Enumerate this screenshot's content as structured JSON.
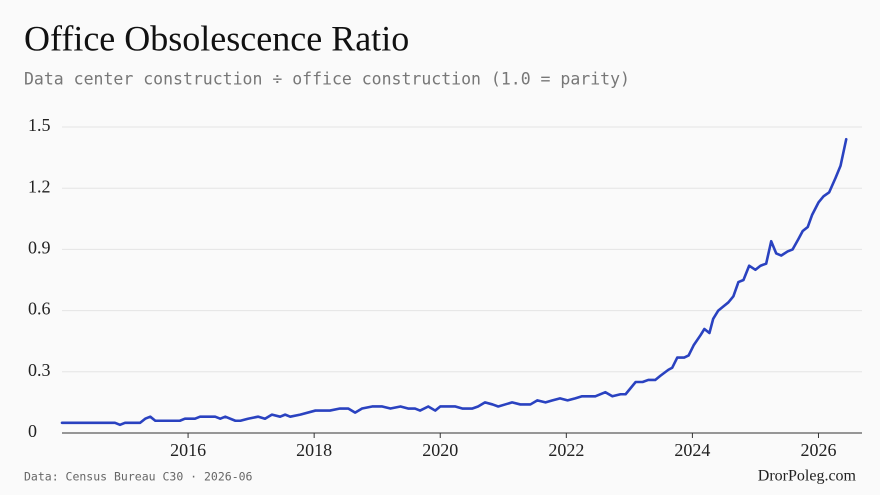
{
  "chart_data": {
    "type": "line",
    "title": "Office Obsolescence Ratio",
    "subtitle": "Data center construction ÷ office construction (1.0 = parity)",
    "source": "Data: Census Bureau C30 · 2026-06",
    "credit": "DrorPoleg.com",
    "xlim": [
      2014,
      2026.5
    ],
    "xticks": [
      2016,
      2018,
      2020,
      2022,
      2024,
      2026
    ],
    "ylim": [
      0,
      1.5
    ],
    "yticks": [
      0,
      0.3,
      0.6,
      0.9,
      1.2,
      1.5
    ],
    "grid": true,
    "x": [
      2014.0,
      2014.84,
      2014.92,
      2015.0,
      2015.24,
      2015.32,
      2015.4,
      2015.48,
      2015.87,
      2015.95,
      2016.11,
      2016.19,
      2016.43,
      2016.51,
      2016.59,
      2016.75,
      2016.83,
      2016.95,
      2017.11,
      2017.22,
      2017.33,
      2017.46,
      2017.54,
      2017.62,
      2017.78,
      2018.02,
      2018.25,
      2018.41,
      2018.54,
      2018.65,
      2018.76,
      2018.92,
      2019.08,
      2019.21,
      2019.37,
      2019.49,
      2019.6,
      2019.68,
      2019.81,
      2019.92,
      2020.0,
      2020.24,
      2020.35,
      2020.51,
      2020.6,
      2020.71,
      2020.83,
      2020.92,
      2021.03,
      2021.14,
      2021.27,
      2021.43,
      2021.54,
      2021.67,
      2021.78,
      2021.9,
      2022.02,
      2022.14,
      2022.25,
      2022.46,
      2022.62,
      2022.73,
      2022.86,
      2022.94,
      2023.02,
      2023.1,
      2023.21,
      2023.3,
      2023.41,
      2023.49,
      2023.62,
      2023.68,
      2023.76,
      2023.87,
      2023.94,
      2024.02,
      2024.13,
      2024.19,
      2024.27,
      2024.33,
      2024.41,
      2024.49,
      2024.57,
      2024.65,
      2024.73,
      2024.81,
      2024.9,
      2025.0,
      2025.08,
      2025.17,
      2025.25,
      2025.33,
      2025.41,
      2025.51,
      2025.59,
      2025.68,
      2025.75,
      2025.83,
      2025.9,
      2026.0,
      2026.08,
      2026.17,
      2026.27,
      2026.35,
      2026.44
    ],
    "series": [
      {
        "name": "Office Obsolescence Ratio",
        "color": "#2a42c0",
        "values": [
          0.05,
          0.05,
          0.04,
          0.05,
          0.05,
          0.07,
          0.08,
          0.06,
          0.06,
          0.07,
          0.07,
          0.08,
          0.08,
          0.07,
          0.08,
          0.06,
          0.06,
          0.07,
          0.08,
          0.07,
          0.09,
          0.08,
          0.09,
          0.08,
          0.09,
          0.11,
          0.11,
          0.12,
          0.12,
          0.1,
          0.12,
          0.13,
          0.13,
          0.12,
          0.13,
          0.12,
          0.12,
          0.11,
          0.13,
          0.11,
          0.13,
          0.13,
          0.12,
          0.12,
          0.13,
          0.15,
          0.14,
          0.13,
          0.14,
          0.15,
          0.14,
          0.14,
          0.16,
          0.15,
          0.16,
          0.17,
          0.16,
          0.17,
          0.18,
          0.18,
          0.2,
          0.18,
          0.19,
          0.19,
          0.22,
          0.25,
          0.25,
          0.26,
          0.26,
          0.28,
          0.31,
          0.32,
          0.37,
          0.37,
          0.38,
          0.43,
          0.48,
          0.51,
          0.49,
          0.56,
          0.6,
          0.62,
          0.64,
          0.67,
          0.74,
          0.75,
          0.82,
          0.8,
          0.82,
          0.83,
          0.94,
          0.88,
          0.87,
          0.89,
          0.9,
          0.95,
          0.99,
          1.01,
          1.07,
          1.13,
          1.16,
          1.18,
          1.25,
          1.31,
          1.44
        ]
      }
    ]
  }
}
